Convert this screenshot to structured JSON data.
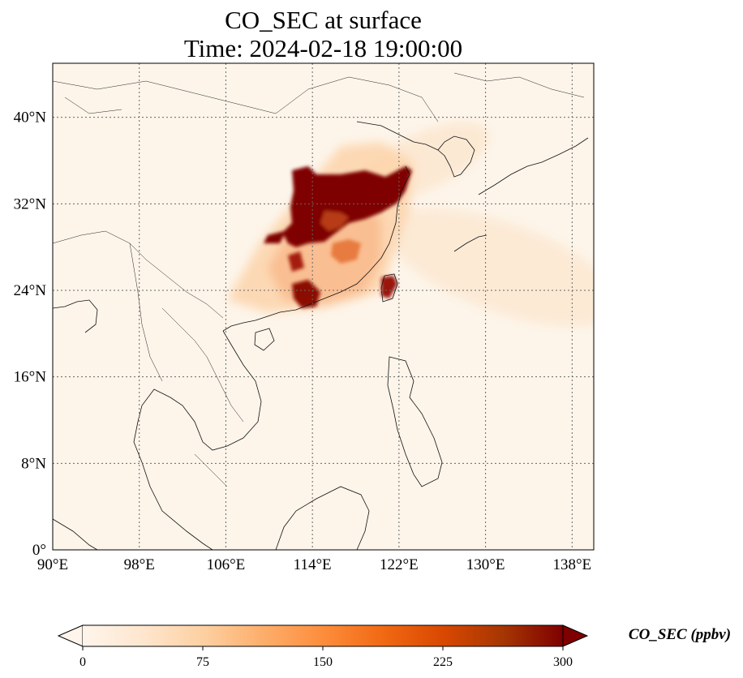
{
  "title": {
    "line1": "CO_SEC at surface",
    "line2": "Time: 2024-02-18 19:00:00"
  },
  "map": {
    "extent": {
      "lon_min": 90,
      "lon_max": 140,
      "lat_min": 0,
      "lat_max": 45
    },
    "gridlines": true,
    "x_ticks": [
      {
        "value": 90,
        "label": "90°E"
      },
      {
        "value": 98,
        "label": "98°E"
      },
      {
        "value": 106,
        "label": "106°E"
      },
      {
        "value": 114,
        "label": "114°E"
      },
      {
        "value": 122,
        "label": "122°E"
      },
      {
        "value": 130,
        "label": "130°E"
      },
      {
        "value": 138,
        "label": "138°E"
      }
    ],
    "y_ticks": [
      {
        "value": 0,
        "label": "0°"
      },
      {
        "value": 8,
        "label": "8°N"
      },
      {
        "value": 16,
        "label": "16°N"
      },
      {
        "value": 24,
        "label": "24°N"
      },
      {
        "value": 32,
        "label": "32°N"
      },
      {
        "value": 40,
        "label": "40°N"
      }
    ]
  },
  "colorbar": {
    "label": "CO_SEC (ppbv)",
    "min": 0,
    "max": 300,
    "extend": "both",
    "colormap": [
      "#fff5eb",
      "#fee6ce",
      "#fdd0a2",
      "#fdae6b",
      "#fd8d3c",
      "#f16913",
      "#d94801",
      "#a63603",
      "#7f0000"
    ],
    "ticks": [
      {
        "value": 0,
        "label": "0"
      },
      {
        "value": 75,
        "label": "75"
      },
      {
        "value": 150,
        "label": "150"
      },
      {
        "value": 225,
        "label": "225"
      },
      {
        "value": 300,
        "label": "300"
      }
    ]
  }
}
